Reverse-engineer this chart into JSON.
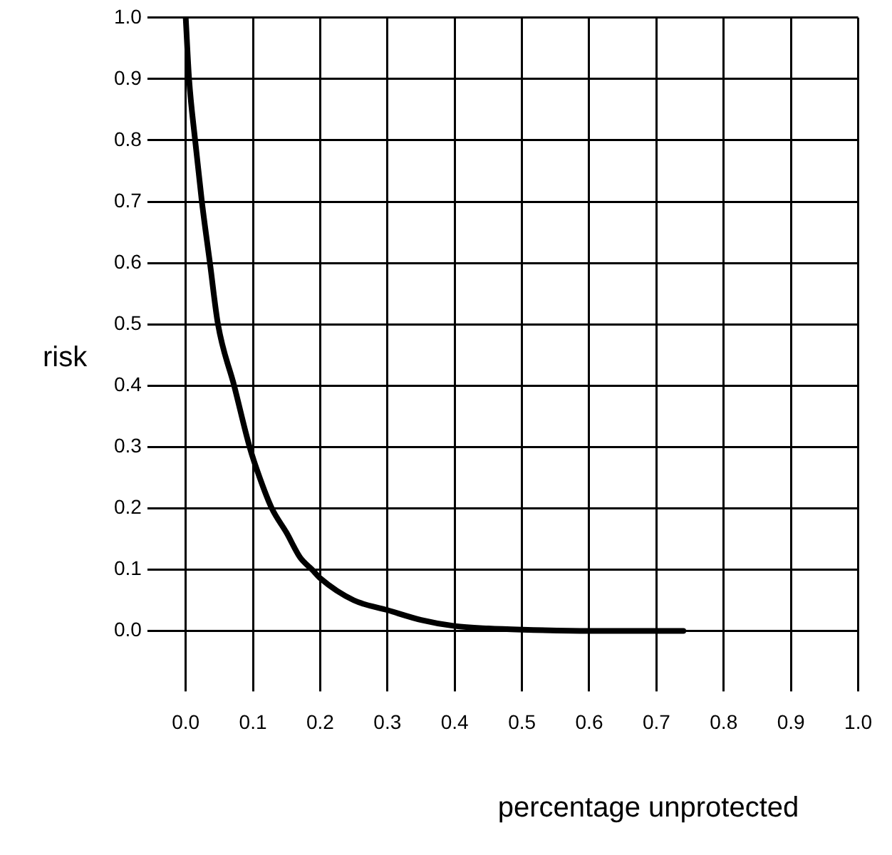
{
  "chart_data": {
    "type": "line",
    "xlabel": "percentage unprotected",
    "ylabel": "risk",
    "series": [
      {
        "color": "#000000",
        "x": [
          0,
          0.005,
          0.014,
          0.024,
          0.036,
          0.048,
          0.072,
          0.095,
          0.11,
          0.128,
          0.15,
          0.17,
          0.188,
          0.2,
          0.25,
          0.3,
          0.35,
          0.4,
          0.45,
          0.5,
          0.6,
          0.74
        ],
        "values": [
          1.0,
          0.9,
          0.8,
          0.7,
          0.6,
          0.5,
          0.4,
          0.3,
          0.25,
          0.2,
          0.16,
          0.12,
          0.1,
          0.086,
          0.05,
          0.034,
          0.018,
          0.008,
          0.004,
          0.002,
          0,
          0
        ]
      }
    ],
    "xlim": [
      -0.04,
      1.0
    ],
    "ylim": [
      -0.08,
      1.0
    ],
    "xticks": [
      {
        "value": 0,
        "label": "0.0"
      },
      0.1,
      0.2,
      0.3,
      0.4,
      0.5,
      0.6,
      0.7,
      0.8,
      0.9,
      {
        "value": 1,
        "label": "1.0"
      }
    ],
    "yticks": [
      {
        "value": 0,
        "label": "0.0"
      },
      0.1,
      0.2,
      0.3,
      0.4,
      0.5,
      0.6,
      0.7,
      0.8,
      0.9,
      {
        "value": 1,
        "label": "1.0"
      }
    ],
    "grid": true,
    "legend": false,
    "marker": "none",
    "line_style": "solid"
  }
}
